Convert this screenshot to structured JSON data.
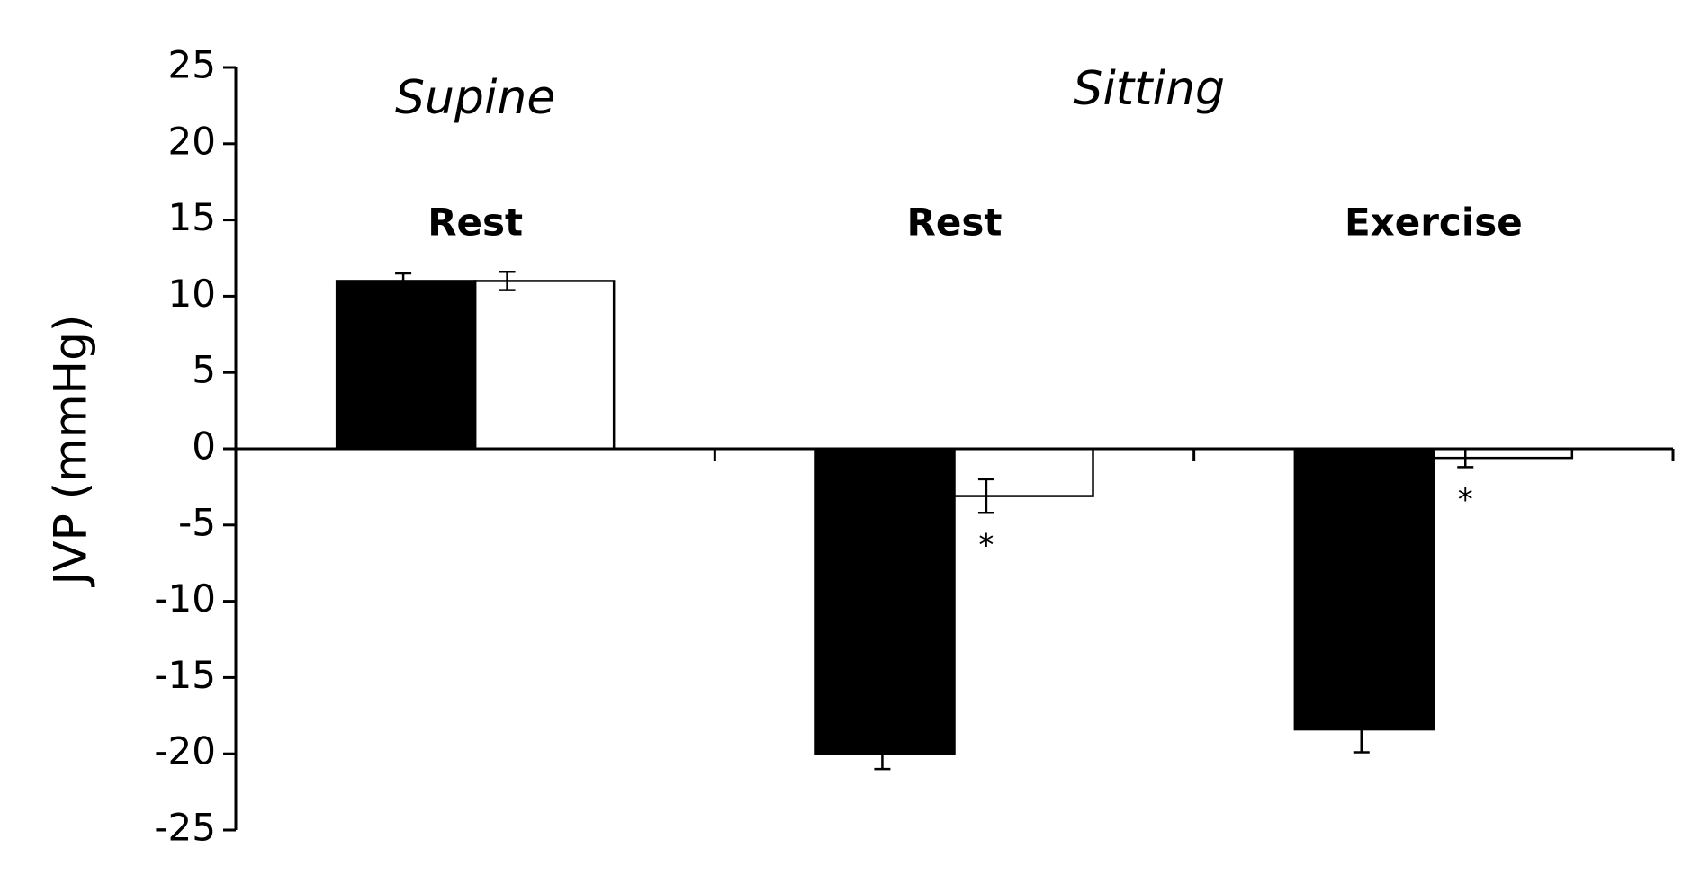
{
  "chart_data": {
    "type": "bar",
    "y_label": "JVP (mmHg)",
    "conditions": [
      "Supine",
      "Sitting"
    ],
    "categories": [
      "Rest",
      "Rest",
      "Exercise"
    ],
    "series": [
      {
        "color": "#000000",
        "values": [
          11,
          -20,
          -18.4
        ],
        "errors": [
          0.5,
          1,
          1.5
        ]
      },
      {
        "color": "#ffffff",
        "values": [
          11,
          -3.1,
          -0.6
        ],
        "errors": [
          0.6,
          1.1,
          0.6
        ],
        "significance": [
          null,
          "*",
          "*"
        ]
      }
    ],
    "ylim": [
      -25,
      25
    ],
    "yticks": [
      -25,
      -20,
      -15,
      -10,
      -5,
      0,
      5,
      10,
      15,
      20,
      25
    ]
  }
}
